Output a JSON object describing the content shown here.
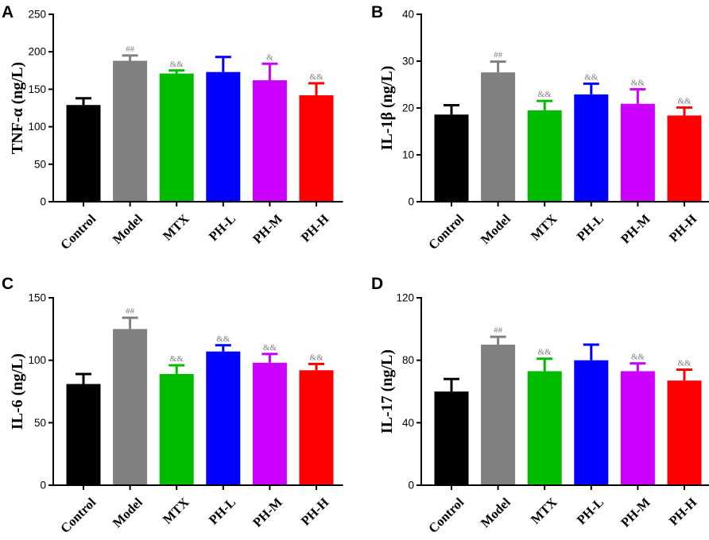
{
  "chart_data": [
    {
      "type": "bar",
      "panel": "A",
      "ylabel": "TNF-α (ng/L)",
      "ylim": [
        0,
        250
      ],
      "yticks": [
        0,
        50,
        100,
        150,
        200,
        250
      ],
      "categories": [
        "Control",
        "Model",
        "MTX",
        "PH-L",
        "PH-M",
        "PH-H"
      ],
      "values": [
        129,
        188,
        171,
        173,
        162,
        142
      ],
      "errors": [
        9,
        7,
        4,
        20,
        22,
        16
      ],
      "annotations": [
        "",
        "##",
        "&&",
        "",
        "&",
        "&&"
      ]
    },
    {
      "type": "bar",
      "panel": "B",
      "ylabel": "IL-1β (ng/L)",
      "ylim": [
        0,
        40
      ],
      "yticks": [
        0,
        10,
        20,
        30,
        40
      ],
      "categories": [
        "Control",
        "Model",
        "MTX",
        "PH-L",
        "PH-M",
        "PH-H"
      ],
      "values": [
        18.6,
        27.6,
        19.5,
        22.9,
        20.9,
        18.4
      ],
      "errors": [
        2.0,
        2.3,
        2.0,
        2.3,
        3.1,
        1.7
      ],
      "annotations": [
        "",
        "##",
        "&&",
        "&&",
        "&&",
        "&&"
      ]
    },
    {
      "type": "bar",
      "panel": "C",
      "ylabel": "IL-6 (ng/L)",
      "ylim": [
        0,
        150
      ],
      "yticks": [
        0,
        50,
        100,
        150
      ],
      "categories": [
        "Control",
        "Model",
        "MTX",
        "PH-L",
        "PH-M",
        "PH-H"
      ],
      "values": [
        81,
        125,
        89,
        107,
        98,
        92
      ],
      "errors": [
        8,
        9,
        7,
        5,
        7,
        5
      ],
      "annotations": [
        "",
        "##",
        "&&",
        "&&",
        "&&",
        "&&"
      ]
    },
    {
      "type": "bar",
      "panel": "D",
      "ylabel": "IL-17 (ng/L)",
      "ylim": [
        0,
        120
      ],
      "yticks": [
        0,
        40,
        80,
        120
      ],
      "categories": [
        "Control",
        "Model",
        "MTX",
        "PH-L",
        "PH-M",
        "PH-H"
      ],
      "values": [
        60,
        90,
        73,
        80,
        73,
        67
      ],
      "errors": [
        8,
        5,
        8,
        10,
        5,
        7
      ],
      "annotations": [
        "",
        "##",
        "&&",
        "",
        "&&",
        "&&"
      ]
    }
  ],
  "colors": {
    "bars": [
      "#000000",
      "#808080",
      "#00bb00",
      "#0000ff",
      "#cc00ff",
      "#ff0000"
    ],
    "annotation": "#808080"
  }
}
